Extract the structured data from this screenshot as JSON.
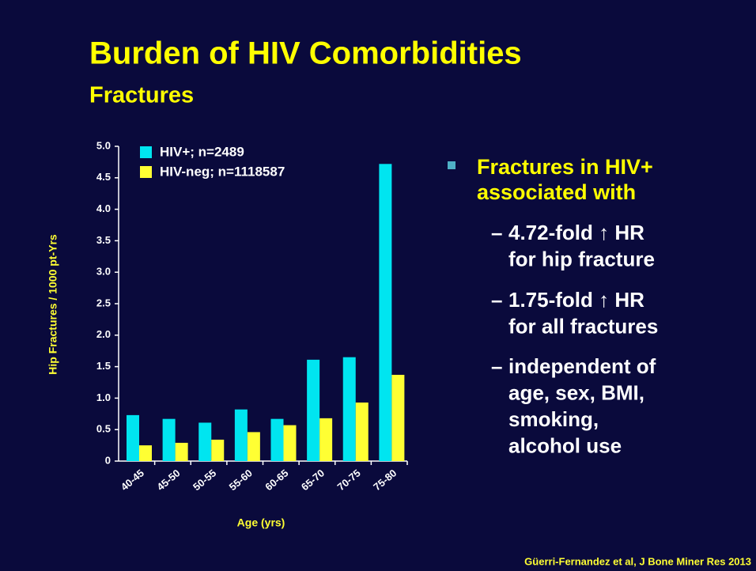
{
  "slide": {
    "title": "Burden of HIV Comorbidities",
    "subtitle": "Fractures",
    "bullet": {
      "lines": [
        "Fractures in HIV+",
        "associated with"
      ],
      "sub_bullets": [
        {
          "lines": [
            "4.72-fold ↑ HR",
            "for hip fracture"
          ]
        },
        {
          "lines": [
            "1.75-fold ↑ HR",
            "for all fractures"
          ]
        },
        {
          "lines": [
            "independent of",
            "age, sex, BMI,",
            "smoking,",
            "alcohol use"
          ]
        }
      ]
    },
    "citation": "Güerri-Fernandez et al, J Bone Miner Res 2013"
  },
  "chart_data": {
    "type": "bar",
    "categories": [
      "40-45",
      "45-50",
      "50-55",
      "55-60",
      "60-65",
      "65-70",
      "70-75",
      "75-80"
    ],
    "series": [
      {
        "name": "HIV+; n=2489",
        "color": "#00e5f0",
        "values": [
          0.73,
          0.67,
          0.61,
          0.82,
          0.67,
          1.61,
          1.65,
          4.72
        ]
      },
      {
        "name": "HIV-neg; n=1118587",
        "color": "#ffff33",
        "values": [
          0.25,
          0.29,
          0.34,
          0.46,
          0.57,
          0.68,
          0.93,
          1.37
        ]
      }
    ],
    "x_label": "Age (yrs)",
    "y_label": "Hip Fractures / 1000 pt-Yrs",
    "ylim": [
      0,
      5
    ],
    "yticks": [
      0,
      0.5,
      {
        "value": 1,
        "label": "1.0"
      },
      1.5,
      {
        "value": 2,
        "label": "2.0"
      },
      2.5,
      {
        "value": 3,
        "label": "3.0"
      },
      3.5,
      {
        "value": 4,
        "label": "4.0"
      },
      4.5,
      {
        "value": 5,
        "label": "5.0"
      }
    ],
    "legend": "upper left",
    "grid": false
  }
}
